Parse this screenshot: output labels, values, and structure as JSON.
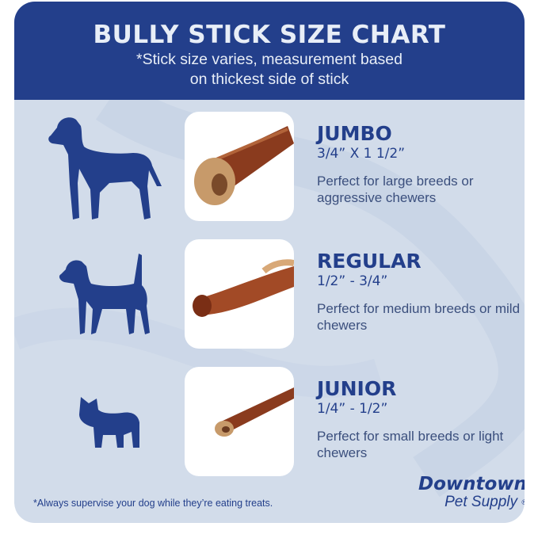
{
  "header": {
    "title": "BULLY STICK SIZE CHART",
    "subtitle_line1": "*Stick size varies, measurement based",
    "subtitle_line2": "on thickest side of stick"
  },
  "sizes": [
    {
      "name": "JUMBO",
      "dimensions": "3/4” X 1 1/2”",
      "description": "Perfect for large breeds or aggressive chewers",
      "icon": "large-dog-icon"
    },
    {
      "name": "REGULAR",
      "dimensions": "1/2” - 3/4”",
      "description": "Perfect for medium breeds or mild chewers",
      "icon": "medium-dog-icon"
    },
    {
      "name": "JUNIOR",
      "dimensions": "1/4” - 1/2”",
      "description": "Perfect for small breeds or light chewers",
      "icon": "small-dog-icon"
    }
  ],
  "footer": {
    "note": "*Always supervise your dog while they’re eating treats."
  },
  "logo": {
    "line1": "Downtown",
    "line2": "Pet Supply",
    "registered": "®"
  },
  "colors": {
    "navy": "#233f8b",
    "background": "#d2dcea",
    "stick": "#8a3b1e"
  }
}
